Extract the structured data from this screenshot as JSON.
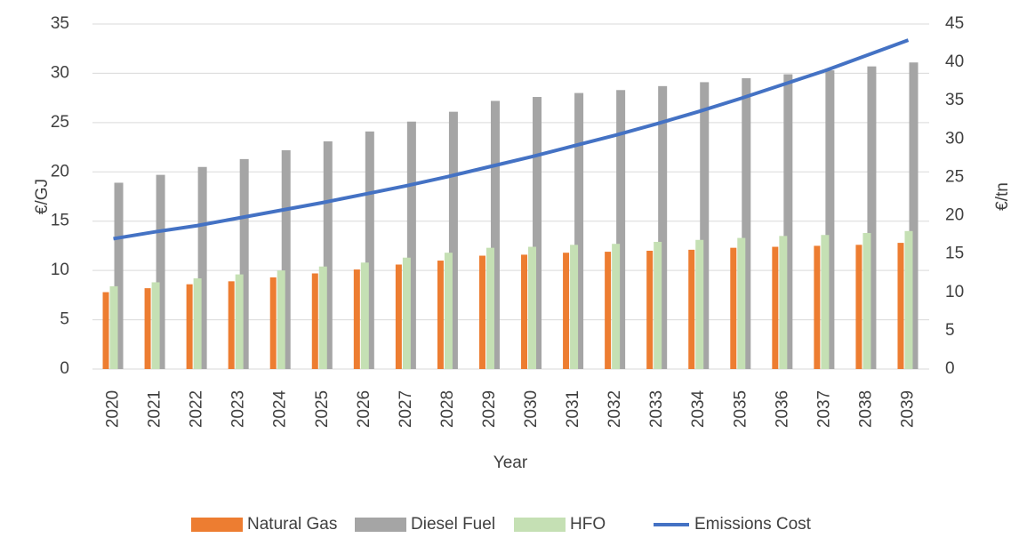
{
  "chart_data": {
    "type": "bar",
    "categories": [
      "2020",
      "2021",
      "2022",
      "2023",
      "2024",
      "2025",
      "2026",
      "2027",
      "2028",
      "2029",
      "2030",
      "2031",
      "2032",
      "2033",
      "2034",
      "2035",
      "2036",
      "2037",
      "2038",
      "2039"
    ],
    "series": [
      {
        "name": "Natural Gas",
        "color": "#ed7d31",
        "type": "bar",
        "values": [
          7.8,
          8.2,
          8.6,
          8.9,
          9.3,
          9.7,
          10.1,
          10.6,
          11.0,
          11.5,
          11.6,
          11.8,
          11.9,
          12.0,
          12.1,
          12.3,
          12.4,
          12.5,
          12.6,
          12.8
        ]
      },
      {
        "name": "Diesel Fuel",
        "color": "#a5a5a5",
        "type": "bar",
        "values": [
          18.9,
          19.7,
          20.5,
          21.3,
          22.2,
          23.1,
          24.1,
          25.1,
          26.1,
          27.2,
          27.6,
          28.0,
          28.3,
          28.7,
          29.1,
          29.5,
          29.9,
          30.3,
          30.7,
          31.1
        ]
      },
      {
        "name": "HFO",
        "color": "#c5e0b4",
        "type": "bar",
        "values": [
          8.4,
          8.8,
          9.2,
          9.6,
          10.0,
          10.4,
          10.8,
          11.3,
          11.8,
          12.3,
          12.4,
          12.6,
          12.7,
          12.9,
          13.1,
          13.3,
          13.5,
          13.6,
          13.8,
          14.0
        ]
      },
      {
        "name": "Emissions Cost",
        "color": "#4472c4",
        "type": "line",
        "axis": "y2",
        "values": [
          17.0,
          17.9,
          18.7,
          19.7,
          20.7,
          21.7,
          22.8,
          23.9,
          25.1,
          26.4,
          27.7,
          29.1,
          30.5,
          32.0,
          33.6,
          35.3,
          37.1,
          38.9,
          40.9,
          42.9
        ]
      }
    ],
    "x_label": "Year",
    "y_label": "€/GJ",
    "y2_label": "€/tn",
    "ylim": [
      0,
      35
    ],
    "yticks": [
      0,
      5,
      10,
      15,
      20,
      25,
      30,
      35
    ],
    "y2lim": [
      0,
      45
    ],
    "y2ticks": [
      0,
      5,
      10,
      15,
      20,
      25,
      30,
      35,
      40,
      45
    ],
    "grid": true,
    "legend": "bottom"
  }
}
